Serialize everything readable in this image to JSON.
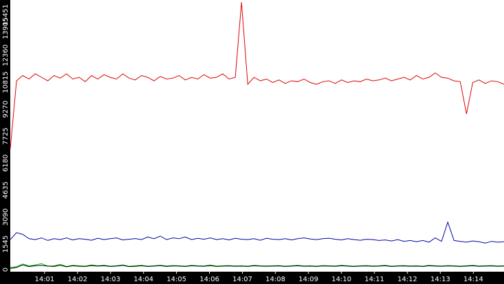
{
  "chart_data": {
    "type": "line",
    "title": "",
    "xlabel": "",
    "ylabel": "",
    "x_ticks": [
      "14:01",
      "14:02",
      "14:03",
      "14:04",
      "14:05",
      "14:06",
      "14:07",
      "14:08",
      "14:09",
      "14:10",
      "14:11",
      "14:12",
      "14:13",
      "14:14"
    ],
    "y_ticks": [
      0,
      1545,
      3090,
      4635,
      6180,
      7725,
      9270,
      10815,
      12360,
      13905,
      15451
    ],
    "ylim": [
      0,
      15451
    ],
    "grid": false,
    "legend": "none",
    "colors": {
      "axis_bg": "#000000",
      "tick_text": "#ffffff",
      "series_red": "#dd0000",
      "series_blue": "#0000aa",
      "series_green": "#00bb00",
      "series_black": "#000000"
    },
    "series": [
      {
        "color": "#dd0000",
        "values": [
          7000,
          10900,
          11200,
          11000,
          11300,
          11100,
          10900,
          11200,
          11050,
          11300,
          11000,
          11100,
          10850,
          11200,
          11000,
          11250,
          11100,
          11000,
          11300,
          11050,
          10950,
          11200,
          11100,
          10900,
          11150,
          11000,
          11050,
          11200,
          10950,
          11100,
          11000,
          11250,
          11050,
          11100,
          11300,
          11000,
          11100,
          15400,
          10700,
          11100,
          10900,
          11000,
          10800,
          10950,
          10750,
          10900,
          10850,
          11000,
          10800,
          10700,
          10850,
          10900,
          10750,
          10950,
          10800,
          10900,
          10850,
          11000,
          10900,
          10950,
          11050,
          10900,
          11000,
          11100,
          10950,
          11200,
          11000,
          11100,
          11350,
          11100,
          11050,
          10900,
          10850,
          9000,
          10800,
          10950,
          10750,
          10900,
          10850,
          10700
        ]
      },
      {
        "color": "#0000aa",
        "values": [
          1800,
          2200,
          2100,
          1850,
          1800,
          1900,
          1750,
          1850,
          1800,
          1900,
          1780,
          1850,
          1820,
          1760,
          1880,
          1800,
          1850,
          1900,
          1780,
          1820,
          1860,
          1800,
          1950,
          1850,
          2000,
          1800,
          1900,
          1850,
          1950,
          1800,
          1870,
          1820,
          1900,
          1800,
          1850,
          1780,
          1880,
          1820,
          1800,
          1850,
          1760,
          1880,
          1820,
          1800,
          1850,
          1780,
          1850,
          1900,
          1830,
          1800,
          1850,
          1880,
          1820,
          1780,
          1850,
          1800,
          1760,
          1820,
          1800,
          1750,
          1780,
          1720,
          1800,
          1700,
          1750,
          1680,
          1750,
          1650,
          1900,
          1700,
          2800,
          1750,
          1700,
          1650,
          1720,
          1680,
          1600,
          1700,
          1650,
          1680
        ]
      },
      {
        "color": "#00bb00",
        "values": [
          200,
          250,
          400,
          300,
          350,
          420,
          280,
          300,
          380,
          260,
          320,
          300,
          280,
          350,
          300,
          330,
          280,
          300,
          350,
          270,
          300,
          320,
          280,
          300,
          330,
          290,
          310,
          300,
          280,
          320,
          300,
          290,
          340,
          280,
          300,
          310,
          290,
          300,
          280,
          320,
          300,
          290,
          300,
          310,
          280,
          300,
          320,
          290,
          300,
          280,
          310,
          300,
          290,
          320,
          300,
          280,
          300,
          310,
          290,
          300,
          320,
          280,
          300,
          310,
          290,
          300,
          280,
          320,
          300,
          290,
          310,
          300,
          280,
          300,
          320,
          290,
          300,
          310,
          290,
          300
        ]
      },
      {
        "color": "#000000",
        "values": [
          150,
          200,
          350,
          250,
          300,
          320,
          280,
          260,
          330,
          240,
          300,
          270,
          260,
          310,
          280,
          300,
          260,
          280,
          320,
          250,
          270,
          300,
          260,
          280,
          310,
          260,
          290,
          280,
          260,
          300,
          280,
          270,
          310,
          260,
          280,
          290,
          270,
          280,
          260,
          300,
          280,
          270,
          280,
          290,
          260,
          280,
          300,
          270,
          280,
          260,
          290,
          280,
          270,
          300,
          280,
          260,
          280,
          290,
          270,
          280,
          300,
          260,
          280,
          290,
          270,
          280,
          260,
          300,
          280,
          270,
          290,
          280,
          260,
          280,
          300,
          270,
          280,
          290,
          270,
          280
        ]
      }
    ]
  }
}
